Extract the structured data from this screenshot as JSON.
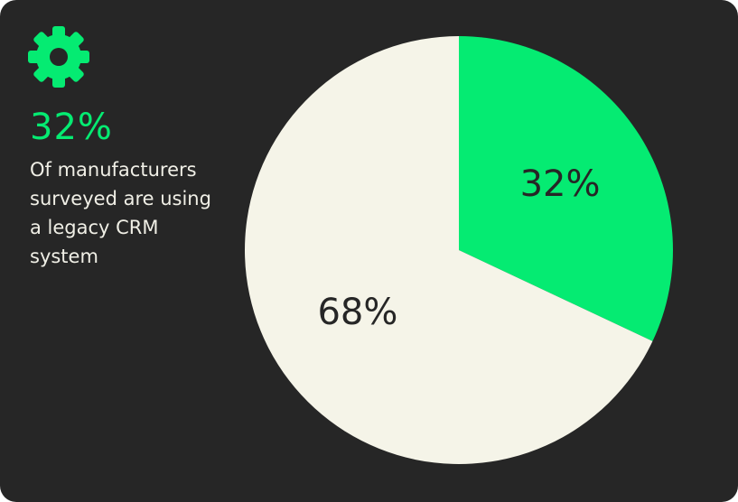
{
  "chart_data": {
    "type": "pie",
    "callout": {
      "label": "32%",
      "text": "Of manufacturers surveyed are using a legacy CRM system"
    },
    "values": [
      32,
      68
    ],
    "value_labels": [
      "32%",
      "68%"
    ],
    "colors": [
      "#05eb72",
      "#f5f4e8"
    ]
  }
}
